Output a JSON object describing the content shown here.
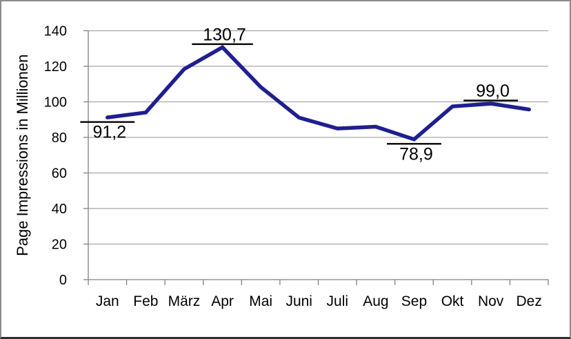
{
  "chart_data": {
    "type": "line",
    "title": "",
    "xlabel": "",
    "ylabel": "Page Impressions in Millionen",
    "categories": [
      "Jan",
      "Feb",
      "März",
      "Apr",
      "Mai",
      "Juni",
      "Juli",
      "Aug",
      "Sep",
      "Okt",
      "Nov",
      "Dez"
    ],
    "series": [
      {
        "name": "Page Impressions",
        "values": [
          91.2,
          94.0,
          118.4,
          130.7,
          108.3,
          91.1,
          85.0,
          86.0,
          78.9,
          97.4,
          99.0,
          95.7
        ],
        "color": "#1f1f8f"
      }
    ],
    "data_labels": [
      {
        "index": 0,
        "category": "Jan",
        "text": "91,2",
        "position": "below"
      },
      {
        "index": 3,
        "category": "Apr",
        "text": "130,7",
        "position": "above"
      },
      {
        "index": 8,
        "category": "Sep",
        "text": "78,9",
        "position": "below"
      },
      {
        "index": 10,
        "category": "Nov",
        "text": "99,0",
        "position": "above"
      }
    ],
    "ylim": [
      0,
      140
    ],
    "yticks": [
      0,
      20,
      40,
      60,
      80,
      100,
      120,
      140
    ],
    "grid": true,
    "legend": false,
    "colors": {
      "line": "#1f1f8f",
      "gridline": "#a6a6a6",
      "axis": "#808080",
      "text": "#000000",
      "label_dash": "#000000",
      "background": "#ffffff",
      "frame_border": "#8b8b8b",
      "frame_border_bottom": "#2f2f2f"
    }
  }
}
